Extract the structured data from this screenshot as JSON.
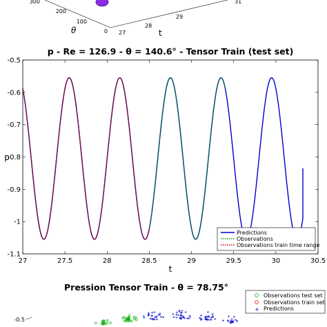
{
  "top_panel": {
    "y_ticks": [
      "300",
      "200",
      "100",
      "0"
    ],
    "theta_label": "θ",
    "x_ticks": [
      "27",
      "28",
      "29",
      "31"
    ],
    "t_label": "t",
    "marker_color": "#8b2be2"
  },
  "chart_data": [
    {
      "type": "line",
      "title": "p - Re = 126.9 - θ = 140.6° - Tensor Train (test set)",
      "xlabel": "t",
      "ylabel": "p",
      "xlim": [
        27,
        30.5
      ],
      "ylim": [
        -1.1,
        -0.5
      ],
      "x_ticks": [
        27,
        27.5,
        28,
        28.5,
        29,
        29.5,
        30,
        30.5
      ],
      "x_tick_labels": [
        "27",
        "27.5",
        "28",
        "28.5",
        "29",
        "29.5",
        "30",
        "30.5"
      ],
      "y_ticks": [
        -0.5,
        -0.6,
        -0.7,
        -0.8,
        -0.9,
        -1,
        -1.1
      ],
      "y_tick_labels": [
        "-0.5",
        "-0.6",
        "-0.7",
        "-0.8",
        "-0.9",
        "-1",
        "-1.1"
      ],
      "grid": false,
      "legend_position": "bottom-right",
      "wave": {
        "center": -0.805,
        "amplitude": 0.25,
        "period": 0.6,
        "peak_t": 27.55
      },
      "series": [
        {
          "name": "Predictions",
          "color": "#0000cc",
          "style": "solid",
          "x_range": [
            27,
            30.32
          ],
          "end_point": [
            30.32,
            -0.835
          ]
        },
        {
          "name": "Observations",
          "color": "#00a000",
          "style": "dotted",
          "x_range": [
            27,
            29.4
          ]
        },
        {
          "name": "Observations train time range",
          "color": "#dd0000",
          "style": "dotted",
          "x_range": [
            27,
            28.5
          ]
        }
      ]
    },
    {
      "type": "scatter",
      "title": "Pression Tensor Train - θ = 78.75°",
      "y_tick_labels": [
        "-0.5"
      ],
      "legend_position": "top-right",
      "series": [
        {
          "name": "Observations test set",
          "color": "#00aa00",
          "marker": "circle"
        },
        {
          "name": "Observations train set",
          "color": "#ff0000",
          "marker": "circle"
        },
        {
          "name": "Predictions",
          "color": "#0000cc",
          "marker": "plus"
        }
      ]
    }
  ]
}
